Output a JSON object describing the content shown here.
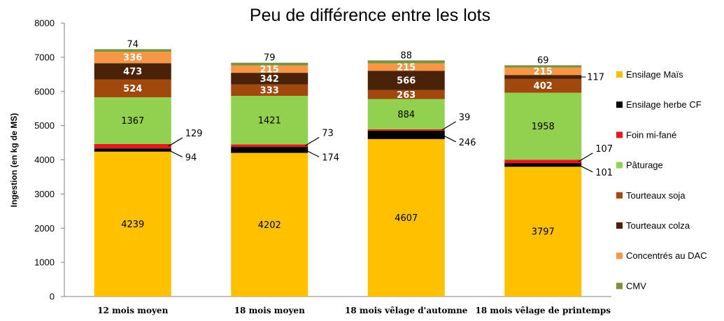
{
  "chart_data": {
    "type": "bar",
    "stacked": true,
    "title": "Peu de différence entre les lots",
    "ylabel": "Ingestion (en kg de MS)",
    "xlabel": "",
    "ylim": [
      0,
      8000
    ],
    "yticks": [
      "0",
      "1000",
      "2000",
      "3000",
      "4000",
      "5000",
      "6000",
      "7000",
      "8000"
    ],
    "grid": false,
    "legend_position": "right",
    "categories": [
      "12 mois moyen",
      "18 mois moyen",
      "18 mois vêlage d'automne",
      "18 mois vêlage de printemps"
    ],
    "series": [
      {
        "name": "Ensilage Maïs",
        "color": "#FFC000",
        "values": [
          4239,
          4202,
          4607,
          3797
        ],
        "labels": [
          "4239",
          "4202",
          "4607",
          "3797"
        ]
      },
      {
        "name": "Ensilage herbe CF",
        "color": "#000000",
        "values": [
          94,
          174,
          246,
          101
        ],
        "labels": [
          "94",
          "174",
          "246",
          "101"
        ]
      },
      {
        "name": "Foin mi-fané",
        "color": "#E31A1C",
        "values": [
          129,
          73,
          39,
          107
        ],
        "labels": [
          "129",
          "73",
          "39",
          "107"
        ]
      },
      {
        "name": "Pâturage",
        "color": "#92D050",
        "values": [
          1367,
          1421,
          884,
          1958
        ],
        "labels": [
          "1367",
          "1421",
          "884",
          "1958"
        ]
      },
      {
        "name": "Tourteaux soja",
        "color": "#A0480E",
        "values": [
          524,
          333,
          263,
          402
        ],
        "labels": [
          "524",
          "333",
          "263",
          "402"
        ]
      },
      {
        "name": "Tourteaux colza",
        "color": "#4A2208",
        "values": [
          473,
          342,
          566,
          117
        ],
        "labels": [
          "473",
          "342",
          "566",
          "117"
        ]
      },
      {
        "name": "Concentrés au DAC",
        "color": "#F79646",
        "values": [
          336,
          215,
          215,
          215
        ],
        "labels": [
          "336",
          "215",
          "215",
          "215"
        ]
      },
      {
        "name": "CMV",
        "color": "#77933C",
        "values": [
          74,
          79,
          88,
          69
        ],
        "labels": [
          "74",
          "79",
          "88",
          "69"
        ]
      }
    ]
  }
}
